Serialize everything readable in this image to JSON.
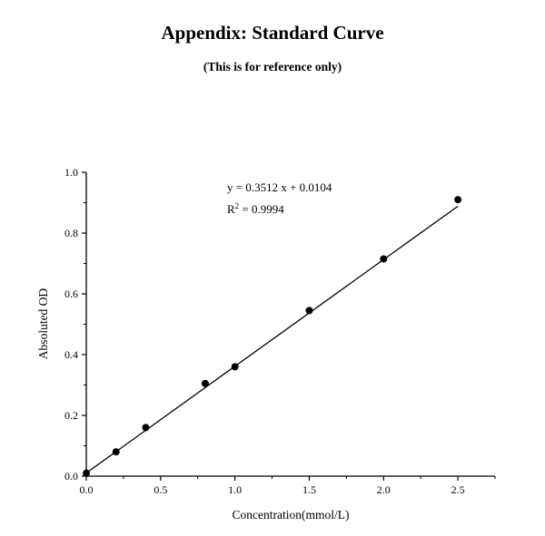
{
  "page": {
    "title": "Appendix: Standard Curve",
    "subtitle": "(This is for reference only)"
  },
  "chart_data": {
    "type": "scatter",
    "title": "Appendix: Standard Curve",
    "xlabel": "Concentration(mmol/L)",
    "ylabel": "Absoluted OD",
    "xlim": [
      0,
      2.75
    ],
    "ylim": [
      0,
      1.0
    ],
    "xticks": [
      0,
      0.5,
      1.0,
      1.5,
      2.0,
      2.5
    ],
    "xtick_labels": [
      "0.0",
      "0.5",
      "1.0",
      "1.5",
      "2.0",
      "2.5"
    ],
    "yticks": [
      0,
      0.2,
      0.4,
      0.6,
      0.8,
      1.0
    ],
    "ytick_labels": [
      "0.0",
      "0.2",
      "0.4",
      "0.6",
      "0.8",
      "1.0"
    ],
    "minor_x_step": 0.25,
    "minor_y_step": 0.1,
    "grid": false,
    "points": [
      [
        0,
        0.01
      ],
      [
        0.2,
        0.08
      ],
      [
        0.4,
        0.16
      ],
      [
        0.8,
        0.305
      ],
      [
        1.0,
        0.36
      ],
      [
        1.5,
        0.545
      ],
      [
        2.0,
        0.715
      ],
      [
        2.5,
        0.91
      ]
    ],
    "fit": {
      "slope": 0.3512,
      "intercept": 0.0104,
      "x_start": 0,
      "x_end": 2.5
    },
    "annotation": {
      "equation": "y = 0.3512 x + 0.0104",
      "r_base": "R",
      "r_exponent": "2",
      "r_value": " = 0.9994"
    },
    "colors": {
      "marker": "#000000",
      "line": "#000000",
      "axis": "#000000"
    }
  }
}
